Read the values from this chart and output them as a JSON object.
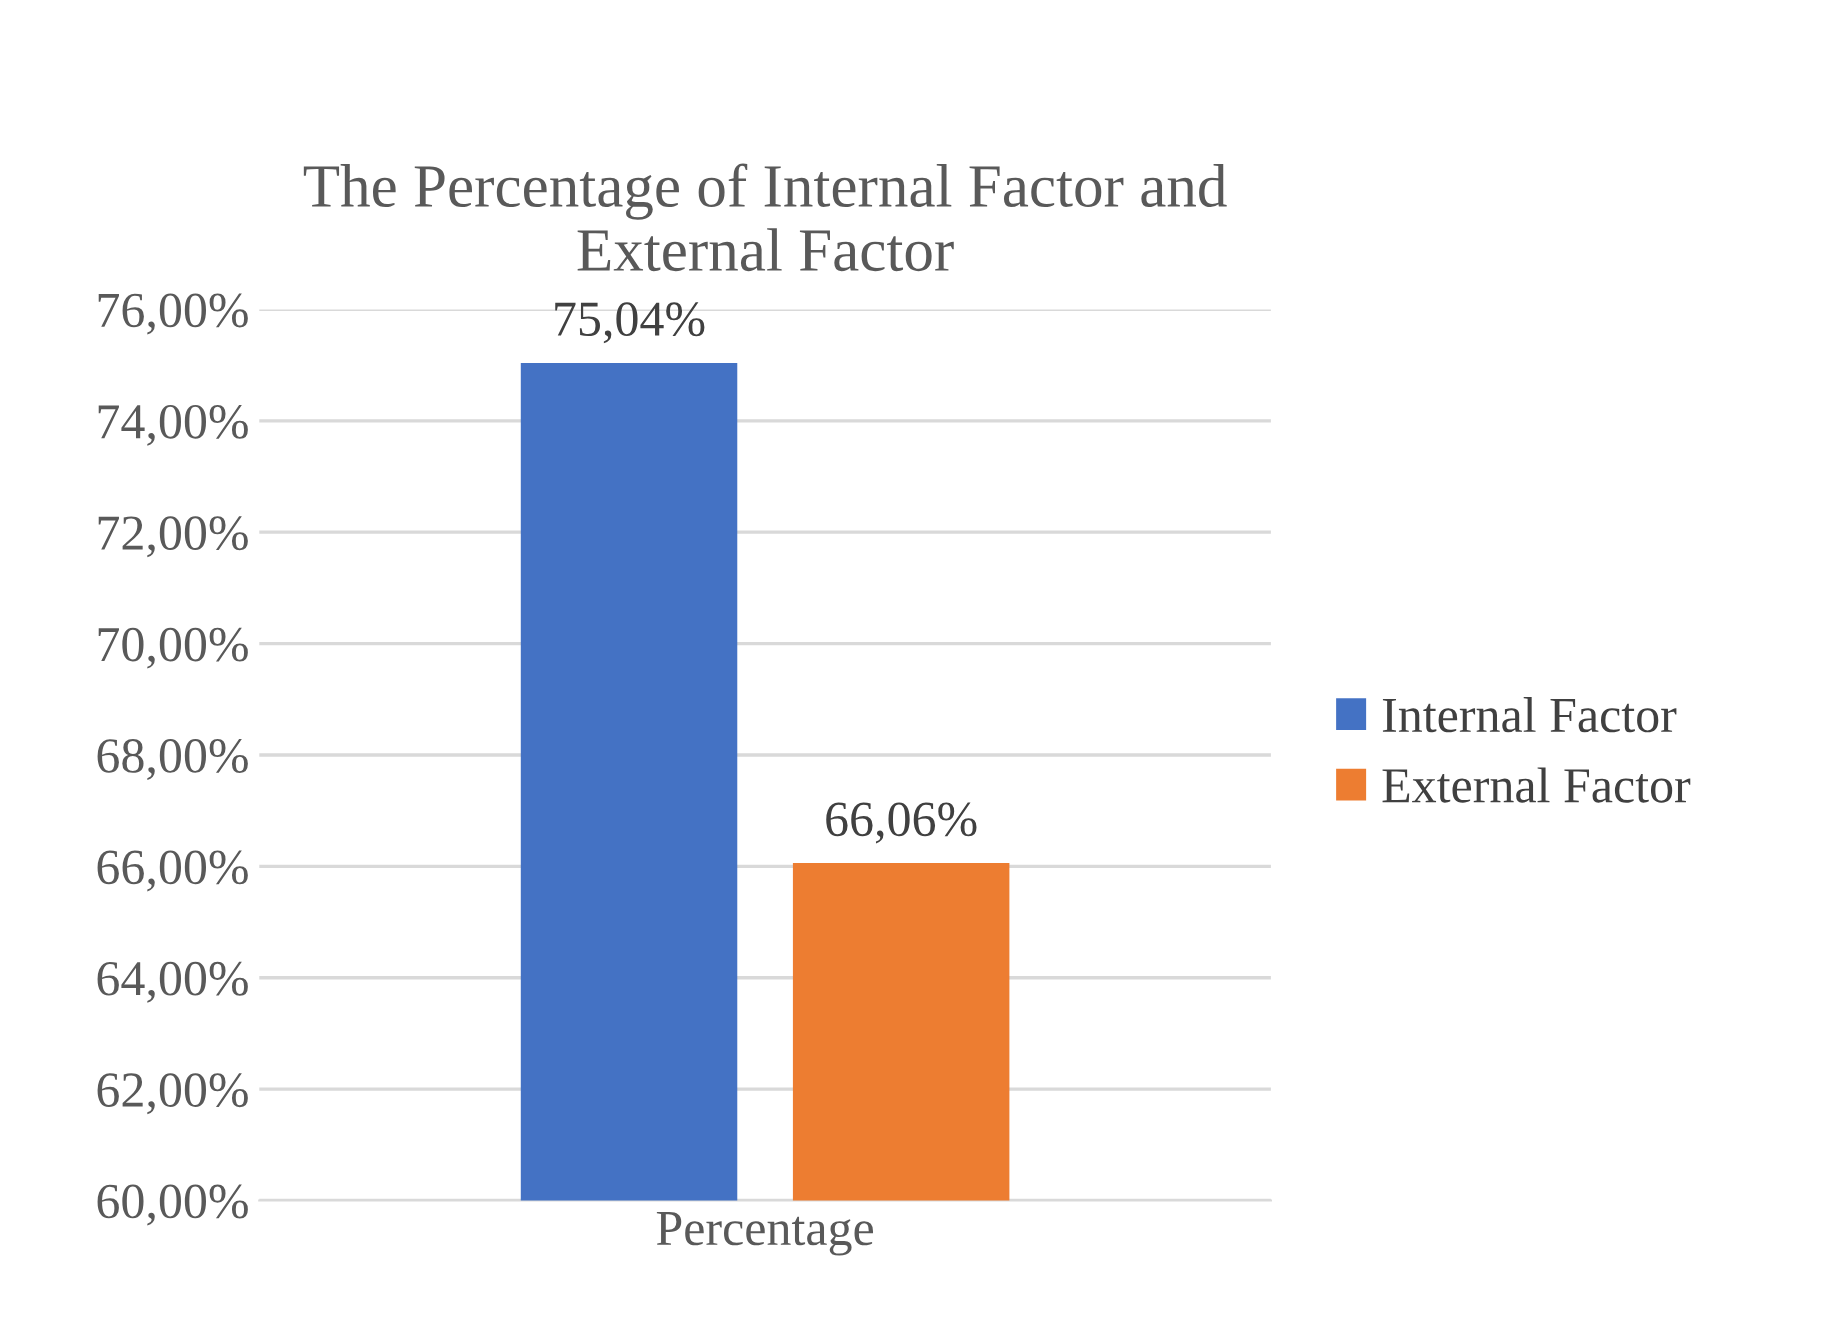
{
  "chart_data": {
    "type": "bar",
    "title": "The Percentage of Internal Factor and\nExternal Factor",
    "categories": [
      "Percentage"
    ],
    "series": [
      {
        "name": "Internal Factor",
        "color": "#4472c4",
        "values": [
          75.04
        ],
        "value_labels": [
          "75,04%"
        ]
      },
      {
        "name": "External Factor",
        "color": "#ed7d31",
        "values": [
          66.06
        ],
        "value_labels": [
          "66,06%"
        ]
      }
    ],
    "ylim": [
      60,
      76
    ],
    "yticks": [
      {
        "value": 60,
        "label": "60,00%"
      },
      {
        "value": 62,
        "label": "62,00%"
      },
      {
        "value": 64,
        "label": "64,00%"
      },
      {
        "value": 66,
        "label": "66,00%"
      },
      {
        "value": 68,
        "label": "68,00%"
      },
      {
        "value": 70,
        "label": "70,00%"
      },
      {
        "value": 72,
        "label": "72,00%"
      },
      {
        "value": 74,
        "label": "74,00%"
      },
      {
        "value": 76,
        "label": "76,00%"
      }
    ],
    "grid": "y",
    "legend": "right"
  }
}
